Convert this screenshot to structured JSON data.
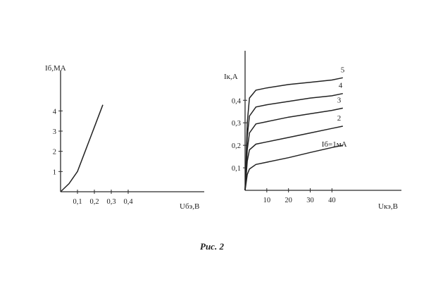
{
  "figure": {
    "caption": "Рис. 2"
  },
  "chart_data": [
    {
      "type": "line",
      "title": "",
      "xlabel": "Uбэ,В",
      "ylabel": "Iб,МА",
      "xlim": [
        0,
        0.85
      ],
      "ylim": [
        0,
        6
      ],
      "xticks": [
        0.1,
        0.2,
        0.3,
        0.4
      ],
      "xtick_labels": [
        "0,1",
        "0,2",
        "0,3",
        "0,4"
      ],
      "yticks": [
        1,
        2,
        3,
        4
      ],
      "ytick_labels": [
        "1",
        "2",
        "3",
        "4"
      ],
      "grid": false,
      "series": [
        {
          "x": [
            0,
            0.05,
            0.1,
            0.15,
            0.2,
            0.25
          ],
          "y": [
            0,
            0.4,
            1,
            2.1,
            3.2,
            4.3
          ]
        }
      ]
    },
    {
      "type": "line",
      "title": "",
      "xlabel": "Uкэ,В",
      "ylabel": "Iк,А",
      "xlim": [
        0,
        72
      ],
      "ylim": [
        0,
        0.62
      ],
      "xticks": [
        10,
        20,
        30,
        40
      ],
      "xtick_labels": [
        "10",
        "20",
        "30",
        "40"
      ],
      "yticks": [
        0.1,
        0.2,
        0.3,
        0.4
      ],
      "ytick_labels": [
        "0,1",
        "0,2",
        "0,3",
        "0,4"
      ],
      "grid": false,
      "series": [
        {
          "name": "Iб=1мА",
          "x": [
            0,
            1,
            2,
            5,
            10,
            20,
            30,
            40,
            45
          ],
          "y": [
            0,
            0.07,
            0.095,
            0.115,
            0.125,
            0.145,
            0.168,
            0.19,
            0.2
          ]
        },
        {
          "name": "2",
          "x": [
            0,
            1,
            2,
            5,
            10,
            20,
            30,
            40,
            45
          ],
          "y": [
            0,
            0.13,
            0.18,
            0.205,
            0.215,
            0.235,
            0.255,
            0.275,
            0.285
          ]
        },
        {
          "name": "3",
          "x": [
            0,
            1,
            2,
            5,
            10,
            20,
            30,
            40,
            45
          ],
          "y": [
            0,
            0.18,
            0.255,
            0.295,
            0.305,
            0.325,
            0.34,
            0.355,
            0.365
          ]
        },
        {
          "name": "4",
          "x": [
            0,
            1,
            2,
            5,
            10,
            20,
            30,
            40,
            45
          ],
          "y": [
            0,
            0.24,
            0.33,
            0.37,
            0.38,
            0.395,
            0.41,
            0.42,
            0.43
          ]
        },
        {
          "name": "5",
          "x": [
            0,
            1,
            2,
            5,
            10,
            20,
            30,
            40,
            45
          ],
          "y": [
            0,
            0.3,
            0.41,
            0.445,
            0.455,
            0.47,
            0.48,
            0.49,
            0.5
          ]
        }
      ]
    }
  ]
}
